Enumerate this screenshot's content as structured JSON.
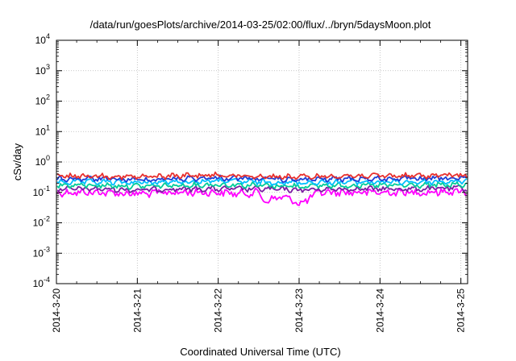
{
  "chart_data": {
    "type": "line",
    "title": "/data/run/goesPlots/archive/2014-03-25/02:00/flux/../bryn/5daysMoon.plot",
    "xlabel": "Coordinated Universal Time (UTC)",
    "ylabel": "cSv/day",
    "yscale": "log",
    "ylim": [
      0.0001,
      10000
    ],
    "xlim": [
      "2014-03-20 00:00",
      "2014-03-25 02:00"
    ],
    "grid": true,
    "legend": "none",
    "x_ticks": [
      {
        "label": "2014-3-20",
        "value": "2014-03-20"
      },
      {
        "label": "2014-3-21",
        "value": "2014-03-21"
      },
      {
        "label": "2014-3-22",
        "value": "2014-03-22"
      },
      {
        "label": "2014-3-23",
        "value": "2014-03-23"
      },
      {
        "label": "2014-3-24",
        "value": "2014-03-24"
      },
      {
        "label": "2014-3-25",
        "value": "2014-03-25"
      }
    ],
    "y_ticks": [
      {
        "base": "10",
        "exp": "-4",
        "value": 0.0001
      },
      {
        "base": "10",
        "exp": "-3",
        "value": 0.001
      },
      {
        "base": "10",
        "exp": "-2",
        "value": 0.01
      },
      {
        "base": "10",
        "exp": "-1",
        "value": 0.1
      },
      {
        "base": "10",
        "exp": "0",
        "value": 1
      },
      {
        "base": "10",
        "exp": "1",
        "value": 10
      },
      {
        "base": "10",
        "exp": "2",
        "value": 100
      },
      {
        "base": "10",
        "exp": "3",
        "value": 1000
      },
      {
        "base": "10",
        "exp": "4",
        "value": 10000
      }
    ],
    "series": [
      {
        "color": "#ff00ff",
        "x": [
          "2014-03-20 00:00",
          "2014-03-20 12:00",
          "2014-03-21 00:00",
          "2014-03-21 12:00",
          "2014-03-22 00:00",
          "2014-03-22 06:00",
          "2014-03-22 12:00",
          "2014-03-22 14:00",
          "2014-03-22 18:00",
          "2014-03-22 22:00",
          "2014-03-23 00:00",
          "2014-03-23 06:00",
          "2014-03-23 12:00",
          "2014-03-24 00:00",
          "2014-03-24 12:00",
          "2014-03-25 00:00",
          "2014-03-25 02:00"
        ],
        "y": [
          0.1,
          0.1,
          0.09,
          0.1,
          0.1,
          0.09,
          0.1,
          0.05,
          0.07,
          0.06,
          0.04,
          0.1,
          0.1,
          0.1,
          0.1,
          0.11,
          0.1
        ]
      },
      {
        "color": "#7b1fa2",
        "x": [
          "2014-03-20 00:00",
          "2014-03-20 12:00",
          "2014-03-21 00:00",
          "2014-03-21 12:00",
          "2014-03-22 00:00",
          "2014-03-22 12:00",
          "2014-03-23 00:00",
          "2014-03-23 12:00",
          "2014-03-24 00:00",
          "2014-03-24 12:00",
          "2014-03-25 00:00",
          "2014-03-25 02:00"
        ],
        "y": [
          0.13,
          0.13,
          0.12,
          0.13,
          0.13,
          0.13,
          0.12,
          0.13,
          0.13,
          0.13,
          0.14,
          0.13
        ]
      },
      {
        "color": "#00cc99",
        "x": [
          "2014-03-20 00:00",
          "2014-03-20 12:00",
          "2014-03-21 00:00",
          "2014-03-21 12:00",
          "2014-03-22 00:00",
          "2014-03-22 12:00",
          "2014-03-23 00:00",
          "2014-03-23 12:00",
          "2014-03-24 00:00",
          "2014-03-24 12:00",
          "2014-03-25 00:00",
          "2014-03-25 02:00"
        ],
        "y": [
          0.17,
          0.17,
          0.16,
          0.17,
          0.18,
          0.17,
          0.16,
          0.17,
          0.17,
          0.17,
          0.18,
          0.17
        ]
      },
      {
        "color": "#00bfff",
        "x": [
          "2014-03-20 00:00",
          "2014-03-20 12:00",
          "2014-03-21 00:00",
          "2014-03-21 12:00",
          "2014-03-22 00:00",
          "2014-03-22 12:00",
          "2014-03-23 00:00",
          "2014-03-23 12:00",
          "2014-03-24 00:00",
          "2014-03-24 12:00",
          "2014-03-25 00:00",
          "2014-03-25 02:00"
        ],
        "y": [
          0.22,
          0.22,
          0.21,
          0.22,
          0.24,
          0.22,
          0.21,
          0.22,
          0.22,
          0.22,
          0.23,
          0.22
        ]
      },
      {
        "color": "#1f3fd6",
        "x": [
          "2014-03-20 00:00",
          "2014-03-20 12:00",
          "2014-03-21 00:00",
          "2014-03-21 12:00",
          "2014-03-22 00:00",
          "2014-03-22 12:00",
          "2014-03-23 00:00",
          "2014-03-23 12:00",
          "2014-03-24 00:00",
          "2014-03-24 12:00",
          "2014-03-25 00:00",
          "2014-03-25 02:00"
        ],
        "y": [
          0.28,
          0.28,
          0.26,
          0.28,
          0.3,
          0.28,
          0.26,
          0.28,
          0.28,
          0.28,
          0.29,
          0.28
        ]
      },
      {
        "color": "#e8302e",
        "x": [
          "2014-03-20 00:00",
          "2014-03-20 12:00",
          "2014-03-21 00:00",
          "2014-03-21 12:00",
          "2014-03-22 00:00",
          "2014-03-22 12:00",
          "2014-03-23 00:00",
          "2014-03-23 12:00",
          "2014-03-24 00:00",
          "2014-03-24 12:00",
          "2014-03-25 00:00",
          "2014-03-25 02:00"
        ],
        "y": [
          0.34,
          0.35,
          0.32,
          0.35,
          0.37,
          0.34,
          0.32,
          0.35,
          0.35,
          0.35,
          0.37,
          0.35
        ]
      }
    ]
  }
}
